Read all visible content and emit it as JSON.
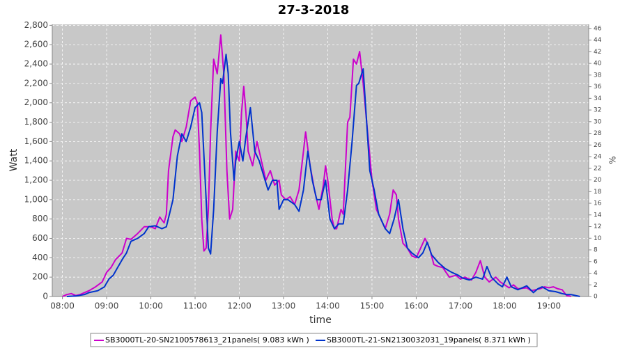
{
  "chart_data": {
    "type": "line",
    "title": "27-3-2018",
    "xlabel": "time",
    "ylabel": "Watt",
    "y2label": "%",
    "xlim": [
      7.77,
      19.9
    ],
    "xticks": [
      {
        "value": 8,
        "label": "08:00"
      },
      {
        "value": 9,
        "label": "09:00"
      },
      {
        "value": 10,
        "label": "10:00"
      },
      {
        "value": 11,
        "label": "11:00"
      },
      {
        "value": 12,
        "label": "12:00"
      },
      {
        "value": 13,
        "label": "13:00"
      },
      {
        "value": 14,
        "label": "14:00"
      },
      {
        "value": 15,
        "label": "15:00"
      },
      {
        "value": 16,
        "label": "16:00"
      },
      {
        "value": 17,
        "label": "17:00"
      },
      {
        "value": 18,
        "label": "18:00"
      },
      {
        "value": 19,
        "label": "19:00"
      }
    ],
    "ylim": [
      0,
      2810
    ],
    "yticks": [
      0,
      200,
      400,
      600,
      800,
      {
        "value": 1000,
        "label": "1,000"
      },
      {
        "value": 1200,
        "label": "1,200"
      },
      {
        "value": 1400,
        "label": "1,400"
      },
      {
        "value": 1600,
        "label": "1,600"
      },
      {
        "value": 1800,
        "label": "1,800"
      },
      {
        "value": 2000,
        "label": "2,000"
      },
      {
        "value": 2200,
        "label": "2,200"
      },
      {
        "value": 2400,
        "label": "2,400"
      },
      {
        "value": 2600,
        "label": "2,600"
      },
      {
        "value": 2800,
        "label": "2,800"
      }
    ],
    "y2lim": [
      0,
      46.7
    ],
    "y2ticks": [
      0,
      2,
      4,
      6,
      8,
      10,
      12,
      14,
      16,
      18,
      20,
      22,
      24,
      26,
      28,
      30,
      32,
      34,
      36,
      38,
      40,
      42,
      44,
      46
    ],
    "grid": true,
    "legend": "bottom",
    "series": [
      {
        "name": "SB3000TL-20-SN2100578613_21panels( 9.083 kWh )",
        "color": "#cc00cc",
        "x": [
          8.0,
          8.1,
          8.2,
          8.3,
          8.4,
          8.5,
          8.6,
          8.75,
          8.9,
          9.0,
          9.1,
          9.2,
          9.35,
          9.45,
          9.55,
          9.7,
          9.85,
          10.0,
          10.1,
          10.2,
          10.3,
          10.35,
          10.4,
          10.5,
          10.55,
          10.65,
          10.7,
          10.8,
          10.9,
          11.0,
          11.05,
          11.1,
          11.15,
          11.2,
          11.25,
          11.3,
          11.35,
          11.42,
          11.5,
          11.58,
          11.65,
          11.72,
          11.78,
          11.85,
          11.92,
          12.0,
          12.05,
          12.1,
          12.15,
          12.2,
          12.3,
          12.4,
          12.5,
          12.6,
          12.7,
          12.8,
          12.9,
          12.95,
          13.05,
          13.15,
          13.25,
          13.35,
          13.45,
          13.5,
          13.6,
          13.7,
          13.8,
          13.9,
          13.95,
          14.0,
          14.1,
          14.15,
          14.2,
          14.3,
          14.35,
          14.45,
          14.5,
          14.58,
          14.65,
          14.72,
          14.8,
          14.9,
          15.0,
          15.1,
          15.2,
          15.3,
          15.4,
          15.48,
          15.55,
          15.6,
          15.7,
          15.8,
          15.9,
          16.0,
          16.1,
          16.2,
          16.3,
          16.4,
          16.5,
          16.6,
          16.75,
          16.9,
          17.0,
          17.1,
          17.25,
          17.35,
          17.45,
          17.55,
          17.65,
          17.8,
          17.9,
          18.0,
          18.1,
          18.2,
          18.3,
          18.5,
          18.6,
          18.8,
          18.9,
          19.0,
          19.1,
          19.2,
          19.3,
          19.4,
          19.5
        ],
        "values": [
          0,
          20,
          30,
          10,
          20,
          40,
          60,
          100,
          150,
          250,
          300,
          380,
          450,
          600,
          590,
          650,
          720,
          720,
          700,
          820,
          760,
          850,
          1300,
          1650,
          1720,
          1680,
          1600,
          1750,
          2020,
          2060,
          2000,
          1500,
          800,
          470,
          500,
          900,
          1700,
          2450,
          2300,
          2700,
          2300,
          1300,
          800,
          900,
          1500,
          1400,
          1900,
          2170,
          1900,
          1500,
          1350,
          1600,
          1400,
          1200,
          1300,
          1150,
          1200,
          1050,
          1000,
          1030,
          950,
          1100,
          1500,
          1700,
          1350,
          1100,
          900,
          1150,
          1350,
          1200,
          800,
          700,
          700,
          900,
          850,
          1800,
          1850,
          2450,
          2400,
          2530,
          2200,
          1700,
          1200,
          900,
          800,
          700,
          850,
          1100,
          1050,
          800,
          550,
          500,
          420,
          400,
          500,
          600,
          500,
          330,
          310,
          300,
          200,
          220,
          180,
          200,
          170,
          250,
          370,
          200,
          150,
          200,
          150,
          120,
          90,
          120,
          80,
          90,
          60,
          80,
          100,
          90,
          100,
          80,
          70,
          10,
          0
        ]
      },
      {
        "name": "SB3000TL-21-SN2130032031_19panels( 8.371 kWh )",
        "color": "#0033cc",
        "x": [
          8.1,
          8.3,
          8.5,
          8.6,
          8.8,
          8.95,
          9.05,
          9.15,
          9.25,
          9.35,
          9.45,
          9.55,
          9.7,
          9.85,
          9.95,
          10.1,
          10.25,
          10.35,
          10.5,
          10.6,
          10.7,
          10.8,
          10.9,
          11.0,
          11.1,
          11.15,
          11.25,
          11.3,
          11.35,
          11.42,
          11.5,
          11.58,
          11.62,
          11.7,
          11.75,
          11.8,
          11.88,
          11.92,
          12.0,
          12.08,
          12.15,
          12.25,
          12.35,
          12.45,
          12.55,
          12.65,
          12.75,
          12.85,
          12.9,
          13.0,
          13.1,
          13.25,
          13.35,
          13.45,
          13.55,
          13.65,
          13.75,
          13.85,
          13.95,
          14.05,
          14.15,
          14.25,
          14.35,
          14.45,
          14.55,
          14.65,
          14.7,
          14.8,
          14.88,
          14.95,
          15.05,
          15.15,
          15.3,
          15.4,
          15.5,
          15.6,
          15.7,
          15.8,
          15.9,
          16.05,
          16.15,
          16.25,
          16.35,
          16.5,
          16.65,
          16.8,
          16.95,
          17.05,
          17.2,
          17.35,
          17.5,
          17.6,
          17.7,
          17.85,
          17.95,
          18.05,
          18.15,
          18.3,
          18.5,
          18.65,
          18.75,
          18.85,
          19.0,
          19.15,
          19.3,
          19.4,
          19.5,
          19.6,
          19.7
        ],
        "values": [
          0,
          5,
          20,
          40,
          60,
          100,
          180,
          220,
          300,
          380,
          450,
          570,
          600,
          650,
          720,
          730,
          700,
          720,
          1000,
          1450,
          1680,
          1600,
          1750,
          1950,
          2000,
          1900,
          1000,
          500,
          440,
          900,
          1700,
          2250,
          2200,
          2500,
          2300,
          1700,
          1200,
          1400,
          1600,
          1400,
          1650,
          1950,
          1500,
          1400,
          1250,
          1100,
          1200,
          1200,
          900,
          1000,
          1000,
          950,
          880,
          1100,
          1500,
          1200,
          1000,
          1000,
          1200,
          800,
          700,
          750,
          750,
          1100,
          1600,
          2180,
          2200,
          2350,
          1800,
          1300,
          1100,
          850,
          700,
          650,
          800,
          1000,
          700,
          500,
          450,
          400,
          450,
          560,
          430,
          350,
          290,
          250,
          220,
          190,
          170,
          200,
          180,
          310,
          200,
          130,
          100,
          200,
          100,
          70,
          110,
          40,
          80,
          100,
          60,
          50,
          30,
          20,
          20,
          10,
          0
        ]
      }
    ]
  }
}
